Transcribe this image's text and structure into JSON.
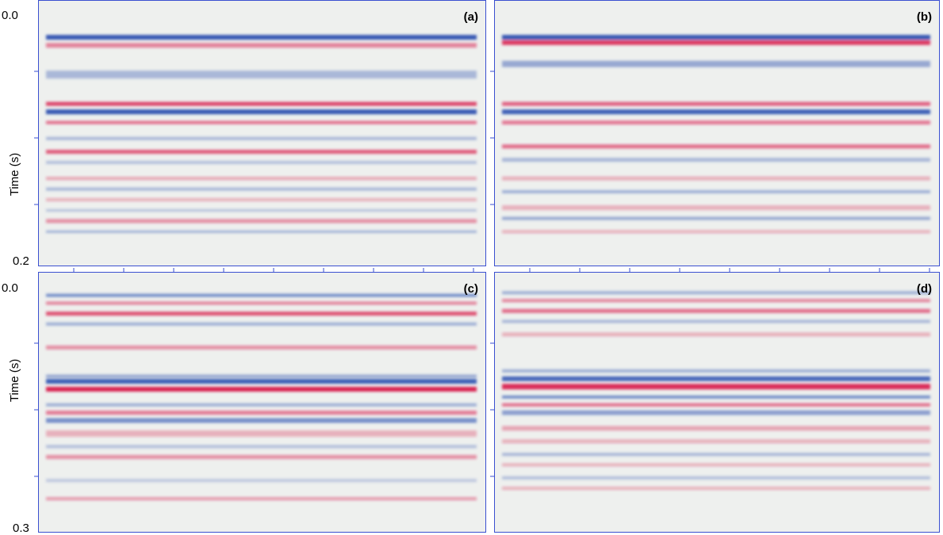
{
  "panels": [
    {
      "label": "(a)"
    },
    {
      "label": "(b)"
    },
    {
      "label": "(c)"
    },
    {
      "label": "(d)"
    }
  ],
  "axes": [
    {
      "y_label": "Time (s)",
      "ticks": [
        "0.0",
        "0.2"
      ]
    },
    {
      "y_label": "Time (s)",
      "ticks": [
        "0.0",
        "0.3"
      ]
    }
  ]
}
